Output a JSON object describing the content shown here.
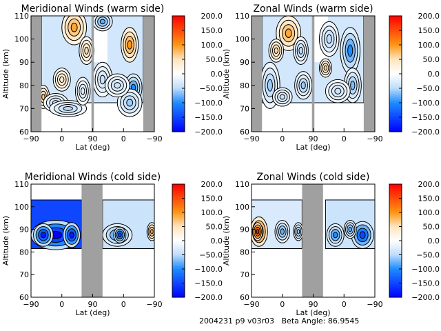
{
  "footer": {
    "id": "2004231 p9 v03r03",
    "beta": "Beta Angle: 86.9545"
  },
  "chart_data": [
    {
      "type": "heatmap",
      "title": "Meridional Winds (warm side)",
      "xlabel": "Lat (deg)",
      "ylabel": "Altitude (km)",
      "xticks": [
        "-90",
        "0",
        "90",
        "0",
        "-90"
      ],
      "yticks": [
        "60",
        "70",
        "80",
        "90",
        "100",
        "110"
      ],
      "ylim": [
        60,
        110
      ],
      "colorbar": {
        "range": [
          -200,
          200
        ],
        "ticks": [
          "200.0",
          "150.0",
          "100.0",
          "50.0",
          "0.0",
          "-50.0",
          "-100.0",
          "-150.0",
          "-200.0"
        ]
      }
    },
    {
      "type": "heatmap",
      "title": "Zonal Winds (warm side)",
      "xlabel": "Lat (deg)",
      "ylabel": "Altitude (km)",
      "xticks": [
        "-90",
        "0",
        "90",
        "0",
        "-90"
      ],
      "yticks": [
        "60",
        "70",
        "80",
        "90",
        "100",
        "110"
      ],
      "ylim": [
        60,
        110
      ],
      "colorbar": {
        "range": [
          -200,
          200
        ],
        "ticks": [
          "200.0",
          "150.0",
          "100.0",
          "50.0",
          "0.0",
          "-50.0",
          "-100.0",
          "-150.0",
          "-200.0"
        ]
      }
    },
    {
      "type": "heatmap",
      "title": "Meridional Winds (cold side)",
      "xlabel": "Lat (deg)",
      "ylabel": "Altitude (km)",
      "xticks": [
        "-90",
        "0",
        "90",
        "0",
        "-90"
      ],
      "yticks": [
        "60",
        "70",
        "80",
        "90",
        "100",
        "110"
      ],
      "ylim": [
        60,
        110
      ],
      "colorbar": {
        "range": [
          -200,
          200
        ],
        "ticks": [
          "200.0",
          "150.0",
          "100.0",
          "50.0",
          "0.0",
          "-50.0",
          "-100.0",
          "-150.0",
          "-200.0"
        ]
      }
    },
    {
      "type": "heatmap",
      "title": "Zonal Winds (cold side)",
      "xlabel": "Lat (deg)",
      "ylabel": "Altitude (km)",
      "xticks": [
        "-90",
        "0",
        "90",
        "0",
        "-90"
      ],
      "yticks": [
        "60",
        "70",
        "80",
        "90",
        "100",
        "110"
      ],
      "ylim": [
        60,
        110
      ],
      "colorbar": {
        "range": [
          -200,
          200
        ],
        "ticks": [
          "200.0",
          "150.0",
          "100.0",
          "50.0",
          "0.0",
          "-50.0",
          "-100.0",
          "-150.0",
          "-200.0"
        ]
      }
    }
  ],
  "colors": {
    "nodata": "#a0a0a0",
    "min": "#0000ff",
    "mid": "#ffffff",
    "max": "#ff0000"
  }
}
